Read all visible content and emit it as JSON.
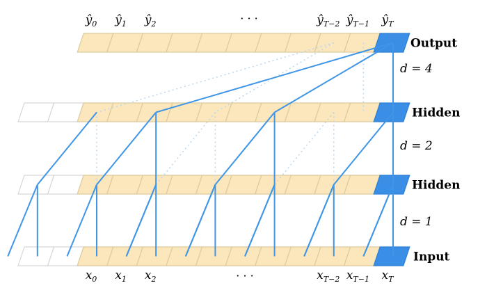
{
  "output_labels": [
    {
      "base": "ŷ",
      "sub": "0"
    },
    {
      "base": "ŷ",
      "sub": "1"
    },
    {
      "base": "ŷ",
      "sub": "2"
    },
    {
      "base": "ŷ",
      "sub": "T−2"
    },
    {
      "base": "ŷ",
      "sub": "T−1"
    },
    {
      "base": "ŷ",
      "sub": "T"
    }
  ],
  "input_labels": [
    {
      "base": "x",
      "sub": "0"
    },
    {
      "base": "x",
      "sub": "1"
    },
    {
      "base": "x",
      "sub": "2"
    },
    {
      "base": "x",
      "sub": "T−2"
    },
    {
      "base": "x",
      "sub": "T−1"
    },
    {
      "base": "x",
      "sub": "T"
    }
  ],
  "ellipsis_top": "· · ·",
  "ellipsis_bottom": "· · ·",
  "rows": [
    "Output",
    "Hidden",
    "Hidden",
    "Input"
  ],
  "dilations": [
    "d = 4",
    "d = 2",
    "d = 1"
  ]
}
